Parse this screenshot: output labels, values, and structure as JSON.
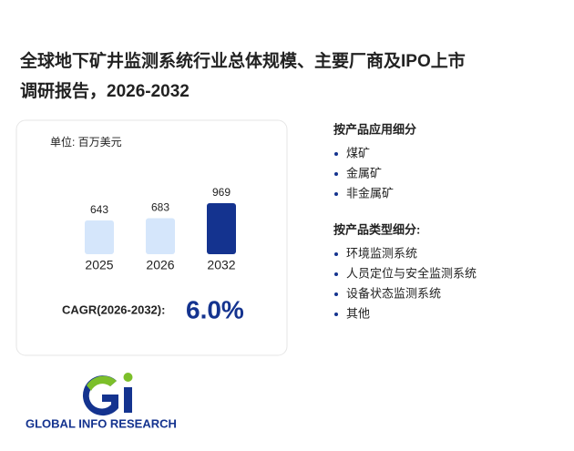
{
  "chart_data": {
    "type": "bar",
    "title": [
      "全球地下矿井监测系统行业总体规模、主要厂商及IPO上市",
      "调研报告，2026-2032"
    ],
    "unit": "单位: 百万美元",
    "categories": [
      "2025",
      "2026",
      "2032"
    ],
    "values": [
      643,
      683,
      969
    ],
    "colors": [
      "#d5e6fb",
      "#d5e6fb",
      "#14338f"
    ],
    "cagr": {
      "label": "CAGR(2026-2032):",
      "value": "6.0%"
    }
  },
  "segments": [
    {
      "heading": "按产品应用细分",
      "items": [
        "煤矿",
        "金属矿",
        "非金属矿"
      ]
    },
    {
      "heading": "按产品类型细分:",
      "items": [
        "环境监测系统",
        "人员定位与安全监测系统",
        "设备状态监测系统",
        "其他"
      ]
    }
  ],
  "brand": "GLOBAL INFO RESEARCH"
}
